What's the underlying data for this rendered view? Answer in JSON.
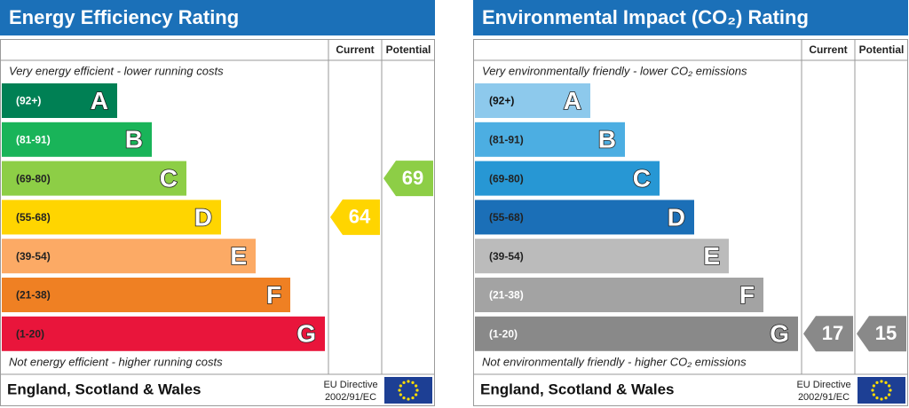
{
  "panels": [
    {
      "title": "Energy Efficiency Rating",
      "columns": [
        "Current",
        "Potential"
      ],
      "top_note": "Very energy efficient - lower running costs",
      "bottom_note": "Not energy efficient - higher running costs",
      "bands": [
        {
          "range": "(92+)",
          "letter": "A",
          "color": "#008054",
          "label_color": "#ffffff"
        },
        {
          "range": "(81-91)",
          "letter": "B",
          "color": "#19b459",
          "label_color": "#ffffff"
        },
        {
          "range": "(69-80)",
          "letter": "C",
          "color": "#8dce46",
          "label_color": "#222222"
        },
        {
          "range": "(55-68)",
          "letter": "D",
          "color": "#ffd500",
          "label_color": "#222222"
        },
        {
          "range": "(39-54)",
          "letter": "E",
          "color": "#fcaa65",
          "label_color": "#222222"
        },
        {
          "range": "(21-38)",
          "letter": "F",
          "color": "#ef8023",
          "label_color": "#222222"
        },
        {
          "range": "(1-20)",
          "letter": "G",
          "color": "#e9153b",
          "label_color": "#222222"
        }
      ],
      "current": {
        "value": 64,
        "color": "#ffd500"
      },
      "potential": {
        "value": 69,
        "color": "#8dce46"
      },
      "footer": {
        "region": "England, Scotland & Wales",
        "directive": [
          "EU Directive",
          "2002/91/EC"
        ]
      }
    },
    {
      "title": "Environmental Impact (CO₂) Rating",
      "columns": [
        "Current",
        "Potential"
      ],
      "top_note": "Very environmentally friendly - lower CO₂ emissions",
      "bottom_note": "Not environmentally friendly - higher CO₂ emissions",
      "bands": [
        {
          "range": "(92+)",
          "letter": "A",
          "color": "#8dc9ec",
          "label_color": "#111111"
        },
        {
          "range": "(81-91)",
          "letter": "B",
          "color": "#4caee2",
          "label_color": "#222222"
        },
        {
          "range": "(69-80)",
          "letter": "C",
          "color": "#2797d4",
          "label_color": "#222222"
        },
        {
          "range": "(55-68)",
          "letter": "D",
          "color": "#1b6fb7",
          "label_color": "#222222"
        },
        {
          "range": "(39-54)",
          "letter": "E",
          "color": "#bbbbbb",
          "label_color": "#222222"
        },
        {
          "range": "(21-38)",
          "letter": "F",
          "color": "#a3a3a3",
          "label_color": "#ffffff"
        },
        {
          "range": "(1-20)",
          "letter": "G",
          "color": "#898989",
          "label_color": "#ffffff"
        }
      ],
      "current": {
        "value": 17,
        "color": "#898989"
      },
      "potential": {
        "value": 15,
        "color": "#898989"
      },
      "footer": {
        "region": "England, Scotland & Wales",
        "directive": [
          "EU Directive",
          "2002/91/EC"
        ]
      }
    }
  ]
}
